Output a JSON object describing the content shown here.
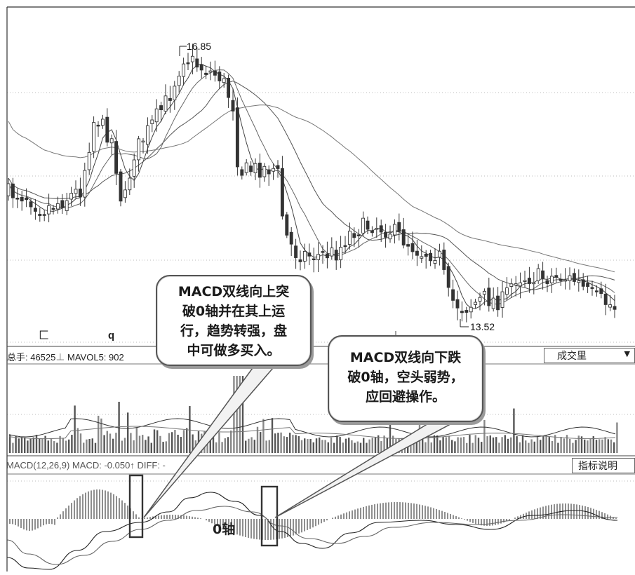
{
  "chart_data": [
    {
      "type": "candlestick",
      "title": "",
      "annotations": [
        {
          "text": "16.85",
          "kind": "high_marker"
        },
        {
          "text": "13.52",
          "kind": "low_marker"
        }
      ],
      "axis_marks": [
        "匚",
        "q"
      ],
      "high": 16.85,
      "low": 13.52,
      "grid": true,
      "series": [
        {
          "name": "",
          "kind": "moving_average"
        },
        {
          "name": "",
          "kind": "moving_average"
        },
        {
          "name": "",
          "kind": "moving_average"
        },
        {
          "name": "",
          "kind": "moving_average"
        }
      ]
    },
    {
      "type": "bar",
      "title": "",
      "labels": {
        "total": "总手: 46525",
        "mavol": "MAVOL5: 902"
      },
      "dropdown": "成交里"
    },
    {
      "type": "line",
      "title": "",
      "labels": {
        "indicator": "MACD(12,26,9)",
        "macd": "MACD: -0.050",
        "diff": "DIFF: -"
      },
      "zero_axis_label": "0轴",
      "button": "指标说明",
      "series": [
        {
          "name": "",
          "kind": "DIF"
        },
        {
          "name": "",
          "kind": "DEA"
        },
        {
          "name": "",
          "kind": "MACD histogram"
        }
      ]
    }
  ],
  "callouts": [
    {
      "lines": [
        "MACD双线向上突",
        "破0轴并在其上运",
        "行，趋势转强，盘",
        "中可做多买入。"
      ]
    },
    {
      "lines": [
        "MACD双线向下跌",
        "破0轴，空头弱势，",
        "应回避操作。"
      ]
    }
  ]
}
